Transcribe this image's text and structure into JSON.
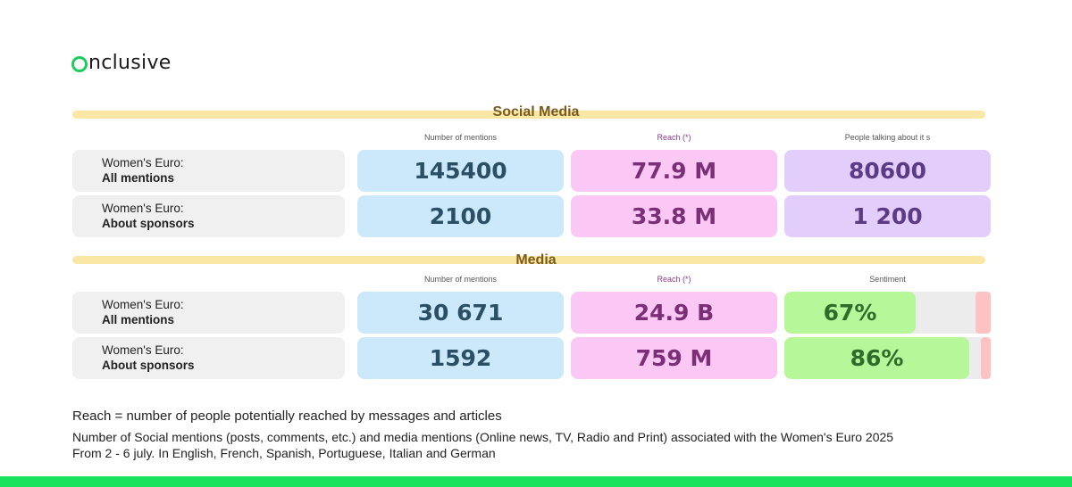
{
  "brand": {
    "name": "nclusive",
    "accent": "#1fcb5a"
  },
  "social": {
    "title": "Social Media",
    "headers": [
      "Number of mentions",
      "Reach (*)",
      "People talking about it s"
    ],
    "rows": [
      {
        "label1": "Women's Euro:",
        "label2": "All mentions",
        "mentions": "145400",
        "reach": "77.9 M",
        "people": "80600"
      },
      {
        "label1": "Women's Euro:",
        "label2": "About sponsors",
        "mentions": "2100",
        "reach": "33.8 M",
        "people": "1 200"
      }
    ]
  },
  "media": {
    "title": "Media",
    "headers": [
      "Number of mentions",
      "Reach (*)",
      "Sentiment"
    ],
    "rows": [
      {
        "label1": "Women's Euro:",
        "label2": "All mentions",
        "mentions": "30 671",
        "reach": "24.9 B",
        "sentiment": "67%",
        "sentiment_value": 0.67
      },
      {
        "label1": "Women's Euro:",
        "label2": "About sponsors",
        "mentions": "1592",
        "reach": "759 M",
        "sentiment": "86%",
        "sentiment_value": 0.86
      }
    ]
  },
  "notes": {
    "reach_def": "Reach = number of people potentially reached by messages and articles",
    "desc": "Number of Social mentions (posts, comments, etc.) and media mentions (Online news, TV, Radio and Print) associated with the Women's Euro 2025",
    "period": "From 2 - 6 july. In English, French, Spanish, Portuguese, Italian and German"
  }
}
